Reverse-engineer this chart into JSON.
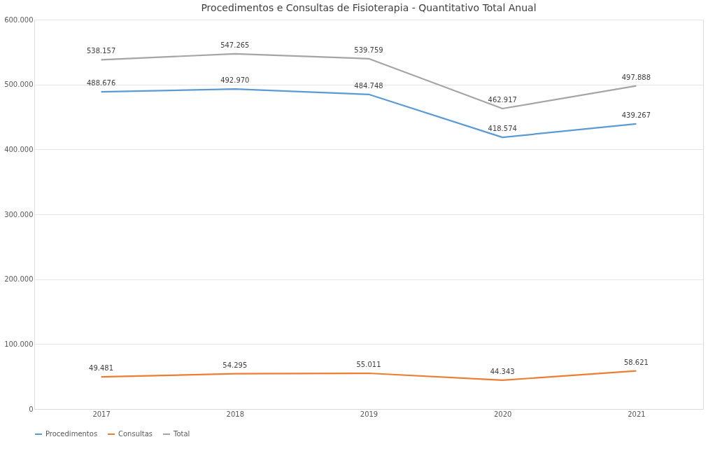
{
  "chart_data": {
    "type": "line",
    "title": "Procedimentos e Consultas de Fisioterapia - Quantitativo Total Anual",
    "categories": [
      "2017",
      "2018",
      "2019",
      "2020",
      "2021"
    ],
    "series": [
      {
        "name": "Procedimentos",
        "color": "#5b9bd5",
        "values": [
          488676,
          492970,
          484748,
          418574,
          439267
        ],
        "value_labels": [
          "488.676",
          "492.970",
          "484.748",
          "418.574",
          "439.267"
        ]
      },
      {
        "name": "Consultas",
        "color": "#ed7d31",
        "values": [
          49481,
          54295,
          55011,
          44343,
          58621
        ],
        "value_labels": [
          "49.481",
          "54.295",
          "55.011",
          "44.343",
          "58.621"
        ]
      },
      {
        "name": "Total",
        "color": "#a5a5a5",
        "values": [
          538157,
          547265,
          539759,
          462917,
          497888
        ],
        "value_labels": [
          "538.157",
          "547.265",
          "539.759",
          "462.917",
          "497.888"
        ]
      }
    ],
    "ylim": [
      0,
      600000
    ],
    "yticks": [
      0,
      {
        "value": 100000,
        "label": "100.000"
      },
      {
        "value": 200000,
        "label": "200.000"
      },
      {
        "value": 300000,
        "label": "300.000"
      },
      {
        "value": 400000,
        "label": "400.000"
      },
      {
        "value": 500000,
        "label": "500.000"
      },
      {
        "value": 600000,
        "label": "600.000"
      }
    ],
    "grid": "y",
    "legend": "bottom",
    "marker": "none",
    "line_style": "solid"
  }
}
